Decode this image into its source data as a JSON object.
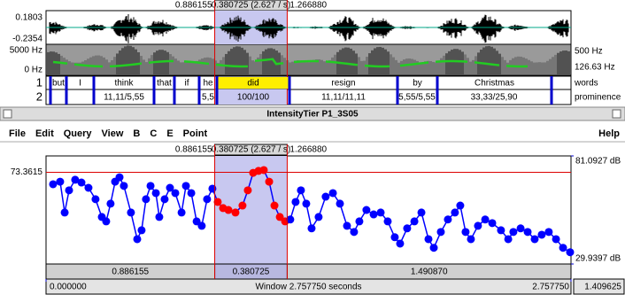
{
  "top_panel": {
    "selection": {
      "start": "0.886155",
      "duration": "0.380725 (2.627 / s)",
      "end": "1.266880"
    },
    "waveform": {
      "max": "0.1803",
      "min": "-0.2354"
    },
    "spectrogram": {
      "max": "5000 Hz",
      "min": "0 Hz"
    },
    "pitch": {
      "max": "500 Hz",
      "min": "126.63 Hz"
    },
    "tiers": [
      {
        "number": "1",
        "name": "words",
        "intervals": [
          "but",
          "I",
          "think",
          "that",
          "if",
          "he",
          "did",
          "resign",
          "by",
          "Christmas"
        ]
      },
      {
        "number": "2",
        "name": "prominence",
        "labels": [
          "11,11/5,55",
          "5,5",
          "100/100",
          "11,11/11,11",
          "5,55/5,55",
          "33,33/25,90"
        ]
      }
    ]
  },
  "window_title": "IntensityTier P1_3S05",
  "menu": [
    "File",
    "Edit",
    "Query",
    "View",
    "B",
    "C",
    "E",
    "Point"
  ],
  "help": "Help",
  "intensity": {
    "selection": {
      "start": {
        "value": 0.886155,
        "label": "0.886155"
      },
      "duration": "0.380725 (2.627 / s)",
      "end": {
        "value": 1.26688,
        "label": "1.266880"
      }
    },
    "cursor": 73.3615,
    "xlim": [
      0,
      2.75775
    ],
    "ylim": [
      29.9397,
      81.0927
    ],
    "yticks": [
      {
        "value": 81.0927,
        "label": "81.0927 dB"
      },
      {
        "value": 29.9397,
        "label": "29.9397 dB"
      }
    ],
    "xticks": [
      {
        "value": 0,
        "label": "0.000000"
      },
      {
        "value": 2.75775,
        "label": "2.757750"
      }
    ],
    "segments": [
      "0.886155",
      "0.380725",
      "1.490870"
    ],
    "window_label": "Window 2.757750 seconds",
    "end_time": "1.409625",
    "times": [
      0.037,
      0.074,
      0.098,
      0.121,
      0.153,
      0.186,
      0.223,
      0.26,
      0.293,
      0.316,
      0.339,
      0.363,
      0.386,
      0.409,
      0.446,
      0.479,
      0.502,
      0.525,
      0.549,
      0.577,
      0.595,
      0.623,
      0.651,
      0.679,
      0.712,
      0.735,
      0.763,
      0.791,
      0.818,
      0.846,
      0.874,
      0.902,
      0.93,
      0.958,
      0.995,
      1.032,
      1.06,
      1.088,
      1.116,
      1.144,
      1.172,
      1.2,
      1.228,
      1.256,
      1.283,
      1.311,
      1.339,
      1.367,
      1.395,
      1.432,
      1.469,
      1.507,
      1.544,
      1.581,
      1.618,
      1.646,
      1.683,
      1.721,
      1.758,
      1.795,
      1.832,
      1.86,
      1.897,
      1.935,
      1.972,
      2.009,
      2.037,
      2.074,
      2.111,
      2.148,
      2.176,
      2.204,
      2.232,
      2.269,
      2.307,
      2.344,
      2.39,
      2.428,
      2.455,
      2.493,
      2.53,
      2.567,
      2.604,
      2.641,
      2.679,
      2.716,
      2.753
    ],
    "values": [
      67.7,
      68.9,
      54.3,
      64.8,
      69.8,
      68.5,
      66.0,
      60.6,
      52.2,
      50.1,
      58.5,
      68.9,
      71.0,
      66.9,
      54.3,
      41.7,
      45.9,
      60.6,
      66.9,
      63.5,
      52.2,
      60.6,
      66.0,
      63.5,
      54.3,
      66.9,
      63.5,
      50.1,
      48.0,
      60.6,
      65.6,
      59.3,
      56.4,
      55.5,
      54.3,
      57.6,
      64.8,
      73.1,
      74.0,
      74.4,
      68.9,
      57.6,
      52.2,
      50.1,
      51.0,
      59.3,
      64.8,
      58.5,
      46.8,
      52.2,
      61.8,
      63.5,
      58.5,
      48.0,
      45.1,
      50.1,
      55.5,
      53.4,
      54.3,
      50.1,
      42.6,
      39.6,
      46.8,
      50.1,
      54.3,
      41.7,
      37.6,
      45.1,
      51.0,
      54.3,
      57.6,
      45.1,
      41.7,
      48.0,
      51.0,
      49.3,
      45.9,
      41.7,
      45.1,
      46.8,
      45.1,
      41.7,
      43.8,
      45.1,
      41.7,
      37.6,
      35.5
    ],
    "point_color": "#0000ff",
    "selected_color": "#ff0000"
  }
}
